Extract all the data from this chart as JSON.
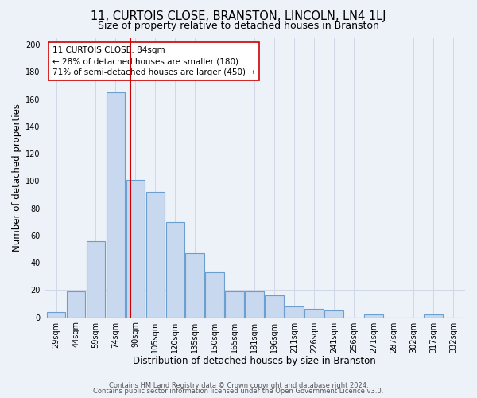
{
  "title": "11, CURTOIS CLOSE, BRANSTON, LINCOLN, LN4 1LJ",
  "subtitle": "Size of property relative to detached houses in Branston",
  "xlabel": "Distribution of detached houses by size in Branston",
  "ylabel": "Number of detached properties",
  "bar_labels": [
    "29sqm",
    "44sqm",
    "59sqm",
    "74sqm",
    "90sqm",
    "105sqm",
    "120sqm",
    "135sqm",
    "150sqm",
    "165sqm",
    "181sqm",
    "196sqm",
    "211sqm",
    "226sqm",
    "241sqm",
    "256sqm",
    "271sqm",
    "287sqm",
    "302sqm",
    "317sqm",
    "332sqm"
  ],
  "bar_values": [
    4,
    19,
    56,
    165,
    101,
    92,
    70,
    47,
    33,
    19,
    19,
    16,
    8,
    6,
    5,
    0,
    2,
    0,
    0,
    2,
    0
  ],
  "bar_color": "#c8d8ee",
  "bar_edge_color": "#6a9fd0",
  "vline_color": "#cc0000",
  "vline_x": 3.73,
  "annotation_title": "11 CURTOIS CLOSE: 84sqm",
  "annotation_line1": "← 28% of detached houses are smaller (180)",
  "annotation_line2": "71% of semi-detached houses are larger (450) →",
  "ylim": [
    0,
    205
  ],
  "yticks": [
    0,
    20,
    40,
    60,
    80,
    100,
    120,
    140,
    160,
    180,
    200
  ],
  "footer_line1": "Contains HM Land Registry data © Crown copyright and database right 2024.",
  "footer_line2": "Contains public sector information licensed under the Open Government Licence v3.0.",
  "bg_color": "#edf2f9",
  "plot_bg_color": "#edf2f9",
  "grid_color": "#d0d8e8",
  "title_fontsize": 10.5,
  "subtitle_fontsize": 9,
  "axis_label_fontsize": 8.5,
  "tick_fontsize": 7,
  "annotation_fontsize": 7.5,
  "footer_fontsize": 6
}
